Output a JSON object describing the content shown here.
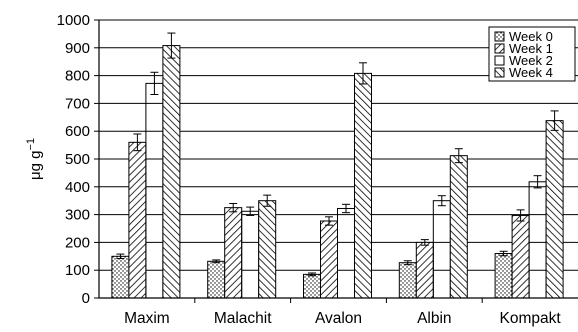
{
  "chart_data": {
    "type": "bar",
    "ylabel": "μg g",
    "ylabel_superscript": "−1",
    "ylim": [
      0,
      1000
    ],
    "yticks": [
      "0",
      "100",
      "200",
      "300",
      "400",
      "500",
      "600",
      "700",
      "800",
      "900",
      "1000"
    ],
    "grid": "horizontal",
    "legend_placement": "top-right",
    "categories": [
      "Maxim",
      "Malachit",
      "Avalon",
      "Albin",
      "Kompakt"
    ],
    "series": [
      {
        "name": "Week 0",
        "pattern": "dots",
        "values": [
          150,
          132,
          85,
          127,
          160
        ],
        "errors": [
          8,
          5,
          5,
          7,
          8
        ]
      },
      {
        "name": "Week 1",
        "pattern": "hatch-right",
        "values": [
          560,
          325,
          277,
          200,
          297
        ],
        "errors": [
          30,
          15,
          15,
          10,
          20
        ]
      },
      {
        "name": "Week 2",
        "pattern": "empty",
        "values": [
          772,
          312,
          322,
          350,
          418
        ],
        "errors": [
          40,
          15,
          15,
          18,
          22
        ]
      },
      {
        "name": "Week 4",
        "pattern": "hatch-left",
        "values": [
          908,
          350,
          808,
          512,
          638
        ],
        "errors": [
          45,
          20,
          38,
          25,
          35
        ]
      }
    ]
  }
}
